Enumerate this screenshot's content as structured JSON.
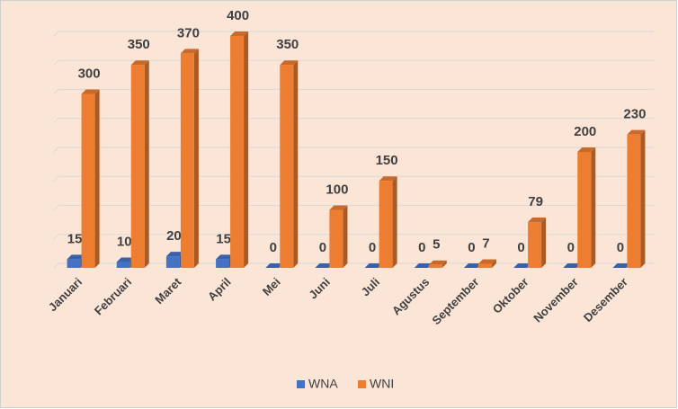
{
  "chart_data": {
    "type": "bar3d",
    "categories": [
      "Januari",
      "Februari",
      "Maret",
      "April",
      "Mei",
      "Juni",
      "Juli",
      "Agustus",
      "September",
      "Oktober",
      "November",
      "Desember"
    ],
    "series": [
      {
        "name": "WNA",
        "color": "#4472c4",
        "values": [
          15,
          10,
          20,
          15,
          0,
          0,
          0,
          0,
          0,
          0,
          0,
          0
        ]
      },
      {
        "name": "WNI",
        "color": "#ed7d31",
        "values": [
          300,
          350,
          370,
          400,
          350,
          100,
          150,
          5,
          7,
          79,
          200,
          230
        ]
      }
    ],
    "ylim": [
      0,
      400
    ],
    "yticks": [
      0,
      50,
      100,
      150,
      200,
      250,
      300,
      350,
      400
    ],
    "grid": true,
    "legend": "bottom"
  }
}
